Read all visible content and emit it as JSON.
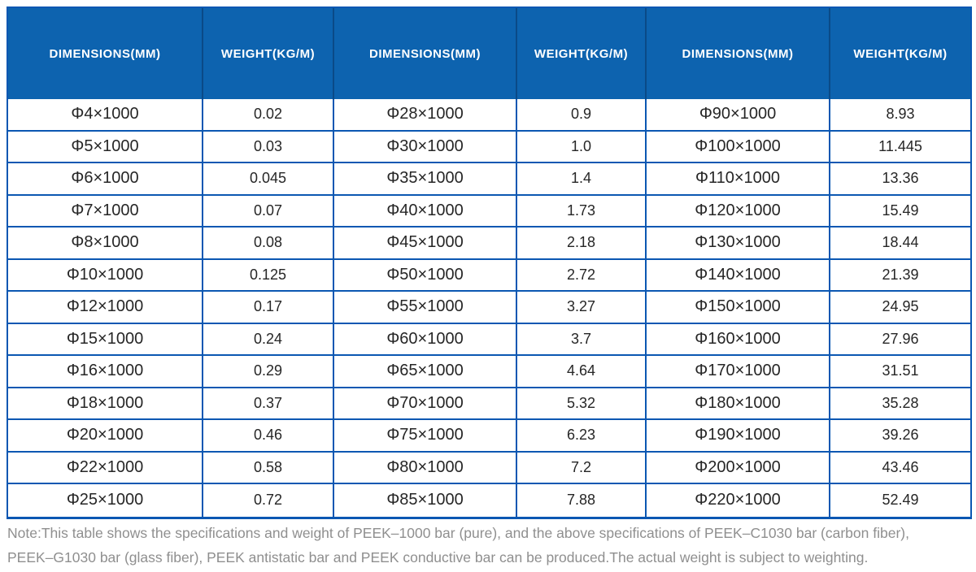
{
  "chart_data": {
    "type": "table",
    "headers": [
      "DIMENSIONS(MM)",
      "WEIGHT(KG/M)",
      "DIMENSIONS(MM)",
      "WEIGHT(KG/M)",
      "DIMENSIONS(MM)",
      "WEIGHT(KG/M)"
    ],
    "rows": [
      [
        "Φ4×1000",
        "0.02",
        "Φ28×1000",
        "0.9",
        "Φ90×1000",
        "8.93"
      ],
      [
        "Φ5×1000",
        "0.03",
        "Φ30×1000",
        "1.0",
        "Φ100×1000",
        "11.445"
      ],
      [
        "Φ6×1000",
        "0.045",
        "Φ35×1000",
        "1.4",
        "Φ110×1000",
        "13.36"
      ],
      [
        "Φ7×1000",
        "0.07",
        "Φ40×1000",
        "1.73",
        "Φ120×1000",
        "15.49"
      ],
      [
        "Φ8×1000",
        "0.08",
        "Φ45×1000",
        "2.18",
        "Φ130×1000",
        "18.44"
      ],
      [
        "Φ10×1000",
        "0.125",
        "Φ50×1000",
        "2.72",
        "Φ140×1000",
        "21.39"
      ],
      [
        "Φ12×1000",
        "0.17",
        "Φ55×1000",
        "3.27",
        "Φ150×1000",
        "24.95"
      ],
      [
        "Φ15×1000",
        "0.24",
        "Φ60×1000",
        "3.7",
        "Φ160×1000",
        "27.96"
      ],
      [
        "Φ16×1000",
        "0.29",
        "Φ65×1000",
        "4.64",
        "Φ170×1000",
        "31.51"
      ],
      [
        "Φ18×1000",
        "0.37",
        "Φ70×1000",
        "5.32",
        "Φ180×1000",
        "35.28"
      ],
      [
        "Φ20×1000",
        "0.46",
        "Φ75×1000",
        "6.23",
        "Φ190×1000",
        "39.26"
      ],
      [
        "Φ22×1000",
        "0.58",
        "Φ80×1000",
        "7.2",
        "Φ200×1000",
        "43.46"
      ],
      [
        "Φ25×1000",
        "0.72",
        "Φ85×1000",
        "7.88",
        "Φ220×1000",
        "52.49"
      ]
    ],
    "note_line1": "Note:This table shows the specifications and weight of PEEK–1000 bar (pure), and the above specifications of PEEK–C1030 bar (carbon fiber),",
    "note_line2": "PEEK–G1030 bar (glass fiber), PEEK antistatic bar and PEEK conductive bar can be produced.The actual weight is subject to weighting."
  },
  "colors": {
    "header_bg": "#0d63af",
    "header_divider": "#0a4a87",
    "border": "#0b57b2",
    "cell_text": "#262626",
    "note_text": "#8f8f8f"
  }
}
